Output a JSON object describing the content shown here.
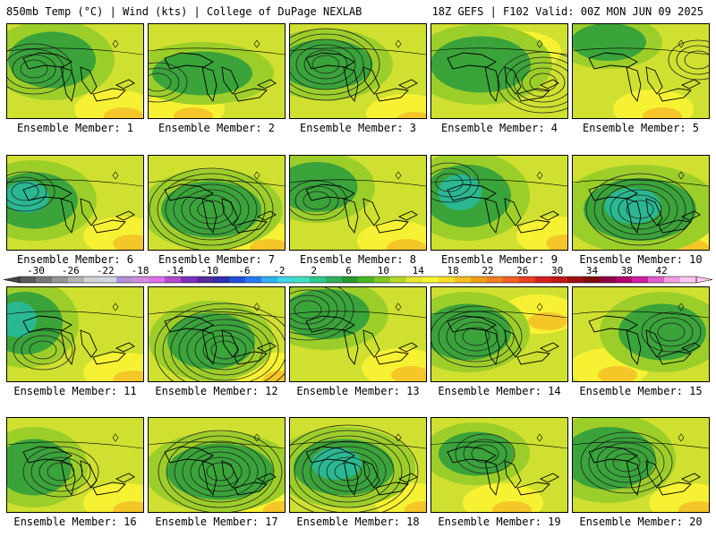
{
  "header": {
    "left": "850mb Temp (°C) | Wind (kts) | College of DuPage NEXLAB",
    "right": "18Z GEFS | F102 Valid: 00Z MON JUN 09 2025"
  },
  "colorbar": {
    "ticks": [
      "-30",
      "-26",
      "-22",
      "-18",
      "-14",
      "-10",
      "-6",
      "-2",
      "2",
      "6",
      "10",
      "14",
      "18",
      "22",
      "26",
      "30",
      "34",
      "38",
      "42"
    ],
    "colors": [
      "#5a5a5a",
      "#787878",
      "#969696",
      "#b4b4b4",
      "#d2d2d2",
      "#cfd8e0",
      "#b58fd8",
      "#d08ce0",
      "#e070e8",
      "#b04ccf",
      "#8030c0",
      "#5a2a9a",
      "#3030b0",
      "#2050d8",
      "#2878f0",
      "#30b0f0",
      "#40d8e8",
      "#40e0c0",
      "#30c890",
      "#30b060",
      "#2a9a30",
      "#48b820",
      "#80c820",
      "#b8d828",
      "#e8e830",
      "#f8f830",
      "#f8e028",
      "#f8c020",
      "#f0a018",
      "#f08020",
      "#f06020",
      "#e84020",
      "#d82020",
      "#c01818",
      "#a01010",
      "#800c0c",
      "#900040",
      "#b00070",
      "#d020a0",
      "#e060c8",
      "#f0a0e0",
      "#ffc8f0"
    ]
  },
  "panels": [
    {
      "label": "Ensemble Member: 1"
    },
    {
      "label": "Ensemble Member: 2"
    },
    {
      "label": "Ensemble Member: 3"
    },
    {
      "label": "Ensemble Member: 4"
    },
    {
      "label": "Ensemble Member: 5"
    },
    {
      "label": "Ensemble Member: 6"
    },
    {
      "label": "Ensemble Member: 7"
    },
    {
      "label": "Ensemble Member: 8"
    },
    {
      "label": "Ensemble Member: 9"
    },
    {
      "label": "Ensemble Member: 10"
    },
    {
      "label": "Ensemble Member: 11"
    },
    {
      "label": "Ensemble Member: 12"
    },
    {
      "label": "Ensemble Member: 13"
    },
    {
      "label": "Ensemble Member: 14"
    },
    {
      "label": "Ensemble Member: 15"
    },
    {
      "label": "Ensemble Member: 16"
    },
    {
      "label": "Ensemble Member: 17"
    },
    {
      "label": "Ensemble Member: 18"
    },
    {
      "label": "Ensemble Member: 19"
    },
    {
      "label": "Ensemble Member: 20"
    }
  ]
}
